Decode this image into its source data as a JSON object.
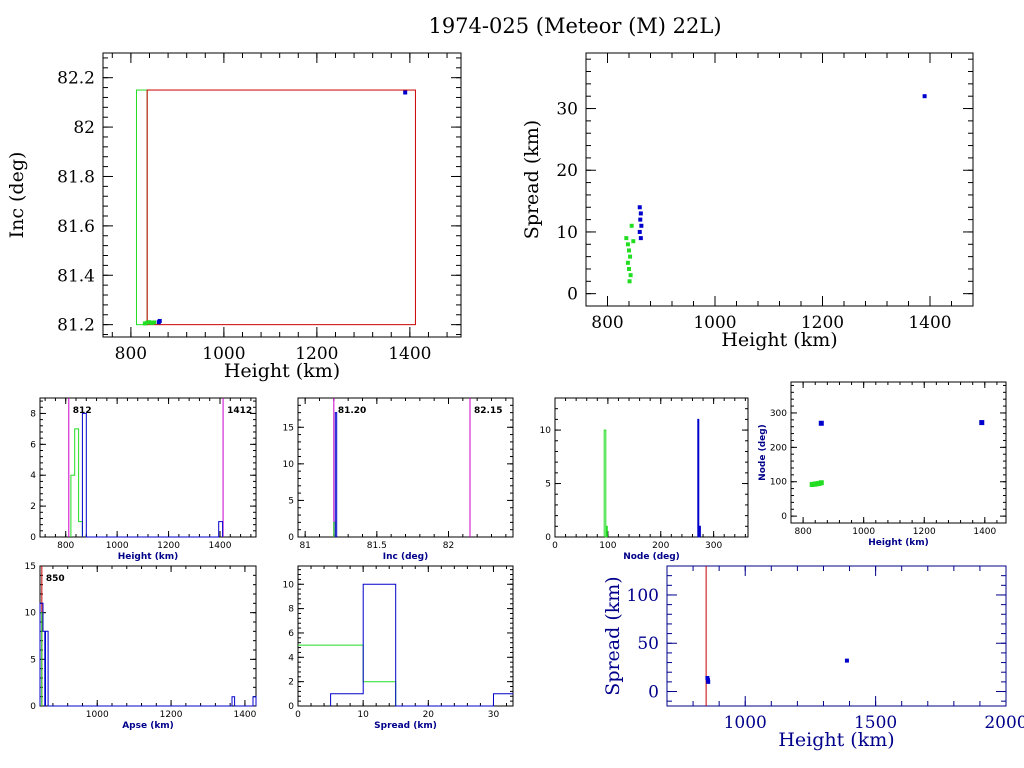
{
  "title": "1974-025 (Meteor (M) 22L)",
  "colors": {
    "green": "#22dd22",
    "blue": "#0000cc",
    "red": "#cc0000",
    "magenta": "#cc00cc",
    "navy": "#00008b"
  },
  "chart_data": [
    {
      "id": "inc-vs-height",
      "type": "scatter",
      "xlabel": "Height (km)",
      "ylabel": "Inc (deg)",
      "xlim": [
        740,
        1510
      ],
      "ylim": [
        81.15,
        82.3
      ],
      "xticks": [
        "800",
        "1000",
        "1200",
        "1400"
      ],
      "yticks": [
        "81.2",
        "81.4",
        "81.6",
        "81.8",
        "82",
        "82.2"
      ],
      "boxes": [
        {
          "color": "green",
          "x0": 812,
          "x1": 835,
          "y0": 81.2,
          "y1": 82.15
        },
        {
          "color": "red",
          "x0": 835,
          "x1": 1412,
          "y0": 81.2,
          "y1": 82.15
        }
      ],
      "series": [
        {
          "color": "green",
          "points": [
            [
              830,
              81.205
            ],
            [
              835,
              81.208
            ],
            [
              840,
              81.21
            ],
            [
              845,
              81.207
            ],
            [
              850,
              81.209
            ]
          ]
        },
        {
          "color": "blue",
          "points": [
            [
              860,
              81.21
            ],
            [
              862,
              81.215
            ],
            [
              1390,
              82.14
            ]
          ]
        }
      ]
    },
    {
      "id": "spread-vs-height",
      "type": "scatter",
      "xlabel": "Height (km)",
      "ylabel": "Spread (km)",
      "xlim": [
        760,
        1480
      ],
      "ylim": [
        -2,
        39
      ],
      "xticks": [
        "800",
        "1000",
        "1200",
        "1400"
      ],
      "yticks": [
        "0",
        "10",
        "20",
        "30"
      ],
      "series": [
        {
          "color": "green",
          "points": [
            [
              835,
              9
            ],
            [
              838,
              8
            ],
            [
              840,
              7
            ],
            [
              842,
              6
            ],
            [
              838,
              5
            ],
            [
              840,
              4
            ],
            [
              843,
              3
            ],
            [
              841,
              2
            ],
            [
              845,
              11
            ],
            [
              848,
              8.5
            ]
          ]
        },
        {
          "color": "blue",
          "points": [
            [
              860,
              14
            ],
            [
              862,
              13
            ],
            [
              861,
              12
            ],
            [
              863,
              11
            ],
            [
              860,
              10
            ],
            [
              862,
              9
            ],
            [
              1390,
              32
            ]
          ]
        }
      ]
    },
    {
      "id": "height-histogram",
      "type": "bar",
      "xlabel": "Height (km)",
      "xlim": [
        700,
        1540
      ],
      "ylim": [
        0,
        9
      ],
      "xticks": [
        "800",
        "1000",
        "1200",
        "1400"
      ],
      "yticks": [
        "0",
        "2",
        "4",
        "6",
        "8"
      ],
      "markers": [
        {
          "x": 812,
          "label": "812"
        },
        {
          "x": 1412,
          "label": "1412"
        }
      ],
      "series": [
        {
          "color": "green",
          "steps": [
            [
              820,
              0
            ],
            [
              820,
              4
            ],
            [
              835,
              4
            ],
            [
              835,
              7
            ],
            [
              850,
              7
            ],
            [
              850,
              1
            ],
            [
              865,
              1
            ],
            [
              865,
              0
            ]
          ]
        },
        {
          "color": "blue",
          "steps": [
            [
              865,
              0
            ],
            [
              865,
              8
            ],
            [
              880,
              8
            ],
            [
              880,
              0
            ],
            [
              1395,
              0
            ],
            [
              1395,
              1
            ],
            [
              1410,
              1
            ],
            [
              1410,
              0
            ]
          ]
        }
      ]
    },
    {
      "id": "inc-histogram",
      "type": "bar",
      "xlabel": "Inc (deg)",
      "xlim": [
        80.95,
        82.45
      ],
      "ylim": [
        0,
        19
      ],
      "xticks": [
        "81",
        "81.5",
        "82"
      ],
      "yticks": [
        "0",
        "5",
        "10",
        "15"
      ],
      "markers": [
        {
          "x": 81.2,
          "label": "81.20"
        },
        {
          "x": 82.15,
          "label": "82.15"
        }
      ],
      "series": [
        {
          "color": "green",
          "steps": [
            [
              81.2,
              0
            ],
            [
              81.2,
              2
            ],
            [
              81.21,
              2
            ],
            [
              81.21,
              0
            ]
          ]
        },
        {
          "color": "blue",
          "steps": [
            [
              81.21,
              0
            ],
            [
              81.21,
              17
            ],
            [
              81.22,
              17
            ],
            [
              81.22,
              0
            ]
          ]
        }
      ]
    },
    {
      "id": "node-histogram",
      "type": "bar",
      "xlabel": "Node (deg)",
      "xlim": [
        0,
        365
      ],
      "ylim": [
        0,
        13
      ],
      "xticks": [
        "0",
        "100",
        "200",
        "300"
      ],
      "yticks": [
        "0",
        "5",
        "10"
      ],
      "series": [
        {
          "color": "green",
          "steps": [
            [
              93,
              0
            ],
            [
              93,
              10
            ],
            [
              96,
              10
            ],
            [
              96,
              0
            ],
            [
              97,
              0
            ],
            [
              97,
              1
            ],
            [
              99,
              1
            ],
            [
              99,
              0
            ]
          ]
        },
        {
          "color": "blue",
          "steps": [
            [
              270,
              0
            ],
            [
              270,
              11
            ],
            [
              272,
              11
            ],
            [
              272,
              0
            ],
            [
              273,
              0
            ],
            [
              273,
              1
            ],
            [
              275,
              1
            ],
            [
              275,
              0
            ]
          ]
        }
      ]
    },
    {
      "id": "node-vs-height",
      "type": "scatter",
      "xlabel": "Height (km)",
      "ylabel": "Node (deg)",
      "xlim": [
        760,
        1470
      ],
      "ylim": [
        -20,
        390
      ],
      "xticks": [
        "800",
        "1000",
        "1200",
        "1400"
      ],
      "yticks": [
        "0",
        "100",
        "200",
        "300"
      ],
      "series": [
        {
          "color": "green",
          "points": [
            [
              830,
              92
            ],
            [
              838,
              93
            ],
            [
              845,
              94
            ],
            [
              852,
              95
            ],
            [
              860,
              97
            ]
          ]
        },
        {
          "color": "blue",
          "points": [
            [
              860,
              270
            ],
            [
              1390,
              272
            ]
          ]
        }
      ]
    },
    {
      "id": "apse-histogram",
      "type": "bar",
      "xlabel": "Apse (km)",
      "xlim": [
        845,
        1430
      ],
      "ylim": [
        0,
        15
      ],
      "xticks": [
        "1000",
        "1200",
        "1400"
      ],
      "yticks": [
        "0",
        "5",
        "10",
        "15"
      ],
      "markers": [
        {
          "x": 850,
          "label": "850",
          "color": "red"
        }
      ],
      "series": [
        {
          "color": "green",
          "steps": [
            [
              845,
              0
            ],
            [
              845,
              10
            ],
            [
              850,
              10
            ],
            [
              850,
              0
            ]
          ]
        },
        {
          "color": "blue",
          "steps": [
            [
              845,
              0
            ],
            [
              845,
              11
            ],
            [
              853,
              11
            ],
            [
              853,
              8
            ],
            [
              858,
              8
            ],
            [
              858,
              0
            ],
            [
              860,
              0
            ],
            [
              860,
              8
            ],
            [
              867,
              8
            ],
            [
              867,
              0
            ],
            [
              1365,
              0
            ],
            [
              1365,
              1
            ],
            [
              1372,
              1
            ],
            [
              1372,
              0
            ],
            [
              1422,
              0
            ],
            [
              1422,
              1
            ],
            [
              1430,
              1
            ],
            [
              1430,
              0
            ]
          ]
        }
      ]
    },
    {
      "id": "spread-histogram",
      "type": "bar",
      "xlabel": "Spread (km)",
      "xlim": [
        0,
        33
      ],
      "ylim": [
        0,
        11.5
      ],
      "xticks": [
        "0",
        "10",
        "20",
        "30"
      ],
      "yticks": [
        "0",
        "2",
        "4",
        "6",
        "8",
        "10"
      ],
      "series": [
        {
          "color": "green",
          "steps": [
            [
              0,
              5
            ],
            [
              10,
              5
            ],
            [
              10,
              2
            ],
            [
              15,
              2
            ],
            [
              15,
              0
            ]
          ]
        },
        {
          "color": "blue",
          "steps": [
            [
              5,
              0
            ],
            [
              5,
              1
            ],
            [
              10,
              1
            ],
            [
              10,
              10
            ],
            [
              15,
              10
            ],
            [
              15,
              0
            ],
            [
              30,
              0
            ],
            [
              30,
              1
            ],
            [
              33,
              1
            ]
          ]
        }
      ]
    },
    {
      "id": "spread-vs-height-wide",
      "type": "scatter",
      "xlabel": "Height (km)",
      "ylabel": "Spread (km)",
      "xlim": [
        700,
        2000
      ],
      "ylim": [
        -15,
        130
      ],
      "xticks": [
        "1000",
        "1500",
        "2000"
      ],
      "yticks": [
        "0",
        "50",
        "100"
      ],
      "vline": {
        "x": 850,
        "color": "red"
      },
      "series": [
        {
          "color": "blue",
          "points": [
            [
              855,
              14
            ],
            [
              857,
              12
            ],
            [
              858,
              10
            ],
            [
              1390,
              32
            ]
          ]
        }
      ]
    }
  ]
}
